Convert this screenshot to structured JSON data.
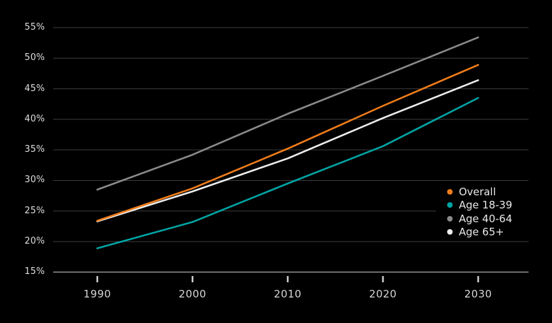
{
  "chart_data": {
    "type": "line",
    "title": "",
    "xlabel": "",
    "ylabel": "",
    "x": [
      1990,
      2000,
      2010,
      2020,
      2030
    ],
    "x_tick_labels": [
      "1990",
      "2000",
      "2010",
      "2020",
      "2030"
    ],
    "y_tick_labels": [
      "15%",
      "20%",
      "25%",
      "30%",
      "35%",
      "40%",
      "45%",
      "50%",
      "55%"
    ],
    "y_tick_values": [
      15,
      20,
      25,
      30,
      35,
      40,
      45,
      50,
      55
    ],
    "ylim": [
      15,
      55
    ],
    "grid": "horizontal",
    "legend_position": "right-middle",
    "series": [
      {
        "name": "Overall",
        "color": "#F07D1A",
        "values": [
          23.4,
          28.7,
          35.2,
          42.2,
          48.9
        ]
      },
      {
        "name": "Age 18-39",
        "color": "#00A5A4",
        "values": [
          18.9,
          23.2,
          29.5,
          35.6,
          43.5
        ]
      },
      {
        "name": "Age 40-64",
        "color": "#8A8A8A",
        "values": [
          28.5,
          34.2,
          40.9,
          47.1,
          53.4
        ]
      },
      {
        "name": "Age 65+",
        "color": "#EDEDED",
        "values": [
          23.3,
          28.2,
          33.6,
          40.2,
          46.4
        ]
      }
    ]
  },
  "colors": {
    "background": "#000000",
    "gridline": "#3E3E3E",
    "axis_line": "#8F8F8F",
    "tick_mark": "#CFCFCF",
    "y_label_text": "#DEDEDE",
    "x_label_text": "#D6D6D6",
    "legend_text": "#E9E9E9",
    "legend_background": "#000000"
  }
}
